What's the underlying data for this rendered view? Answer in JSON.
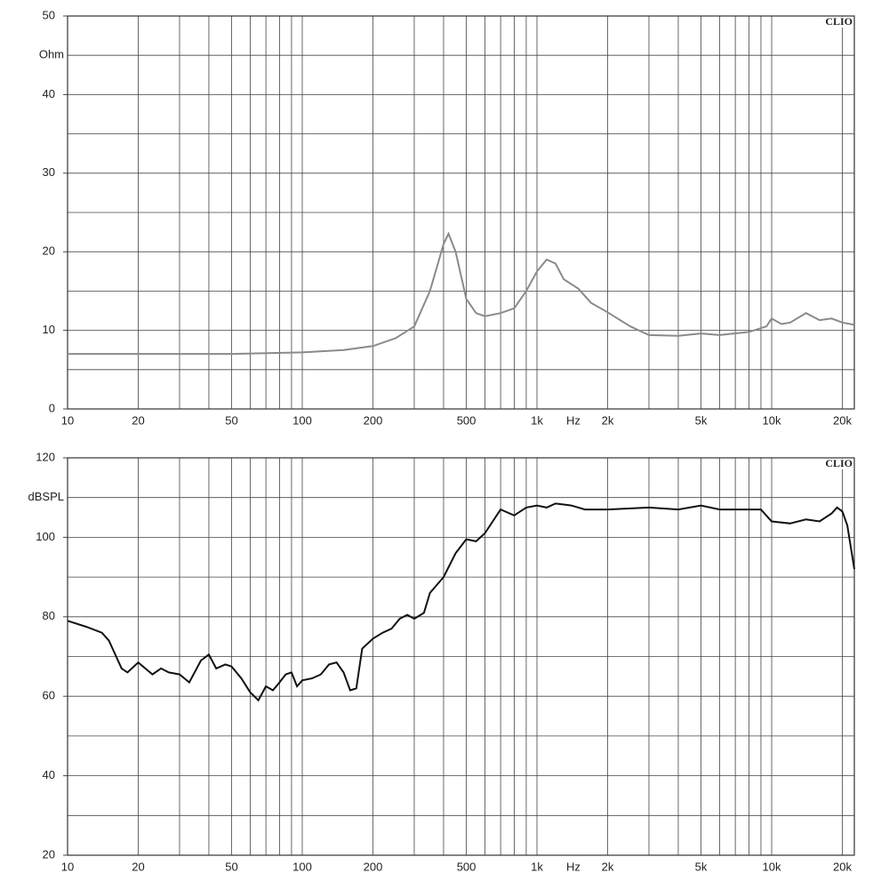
{
  "chart_data": [
    {
      "type": "line",
      "log_x": true,
      "grid": true,
      "x_label": "Hz",
      "y_label": "Ohm",
      "brand": "CLIO",
      "xlim": [
        10,
        22500
      ],
      "ylim": [
        0,
        50
      ],
      "xticks": [
        10,
        20,
        50,
        100,
        200,
        500,
        {
          "value": 1000,
          "label": "1k"
        },
        {
          "value": 2000,
          "label": "2k"
        },
        {
          "value": 5000,
          "label": "5k"
        },
        {
          "value": 10000,
          "label": "10k"
        },
        {
          "value": 20000,
          "label": "20k"
        }
      ],
      "xminor": [
        30,
        40,
        60,
        70,
        80,
        90,
        300,
        400,
        600,
        700,
        800,
        900,
        3000,
        4000,
        6000,
        7000,
        8000,
        9000
      ],
      "yticks": [
        0,
        10,
        20,
        30,
        40,
        50
      ],
      "yminor": [
        5,
        15,
        25,
        35,
        45
      ],
      "color": "#8a8a8a",
      "x": [
        10,
        50,
        100,
        150,
        200,
        250,
        300,
        350,
        400,
        420,
        450,
        500,
        550,
        600,
        700,
        800,
        900,
        1000,
        1100,
        1200,
        1300,
        1500,
        1700,
        2000,
        2500,
        3000,
        4000,
        5000,
        6000,
        8000,
        9500,
        10000,
        11000,
        12000,
        14000,
        16000,
        18000,
        20000,
        22500
      ],
      "values": [
        7,
        7,
        7.2,
        7.5,
        8,
        9,
        10.5,
        15,
        21,
        22.3,
        20,
        14,
        12.2,
        11.8,
        12.2,
        12.8,
        15,
        17.5,
        19,
        18.5,
        16.5,
        15.3,
        13.5,
        12.3,
        10.5,
        9.4,
        9.3,
        9.6,
        9.4,
        9.8,
        10.5,
        11.5,
        10.8,
        11,
        12.2,
        11.3,
        11.5,
        11,
        10.7
      ]
    },
    {
      "type": "line",
      "log_x": true,
      "grid": true,
      "x_label": "Hz",
      "y_label": "dBSPL",
      "brand": "CLIO",
      "xlim": [
        10,
        22500
      ],
      "ylim": [
        20,
        120
      ],
      "xticks": [
        10,
        20,
        50,
        100,
        200,
        500,
        {
          "value": 1000,
          "label": "1k"
        },
        {
          "value": 2000,
          "label": "2k"
        },
        {
          "value": 5000,
          "label": "5k"
        },
        {
          "value": 10000,
          "label": "10k"
        },
        {
          "value": 20000,
          "label": "20k"
        }
      ],
      "xminor": [
        30,
        40,
        60,
        70,
        80,
        90,
        300,
        400,
        600,
        700,
        800,
        900,
        3000,
        4000,
        6000,
        7000,
        8000,
        9000
      ],
      "yticks": [
        20,
        40,
        60,
        80,
        100,
        120
      ],
      "yminor": [
        30,
        50,
        70,
        90,
        110
      ],
      "color": "#111111",
      "x": [
        10,
        12,
        14,
        15,
        17,
        18,
        20,
        23,
        25,
        27,
        30,
        33,
        37,
        40,
        43,
        47,
        50,
        55,
        60,
        65,
        70,
        75,
        80,
        85,
        90,
        95,
        100,
        110,
        120,
        130,
        140,
        150,
        160,
        170,
        180,
        200,
        220,
        240,
        260,
        280,
        300,
        330,
        350,
        400,
        450,
        500,
        550,
        600,
        700,
        800,
        900,
        1000,
        1100,
        1200,
        1400,
        1600,
        2000,
        3000,
        4000,
        5000,
        6000,
        8000,
        9000,
        10000,
        12000,
        14000,
        16000,
        18000,
        19000,
        20000,
        21000,
        22500
      ],
      "values": [
        79,
        77.5,
        76,
        74,
        67,
        66,
        68.5,
        65.5,
        67,
        66,
        65.5,
        63.5,
        69,
        70.5,
        67,
        68,
        67.5,
        64.5,
        61,
        59,
        62.5,
        61.5,
        63.5,
        65.5,
        66,
        62.5,
        64,
        64.5,
        65.5,
        68,
        68.5,
        66,
        61.5,
        62,
        72,
        74.5,
        76,
        77,
        79.5,
        80.5,
        79.5,
        81,
        86,
        90,
        96,
        99.5,
        99,
        101,
        107,
        105.5,
        107.5,
        108,
        107.5,
        108.5,
        108,
        107,
        107,
        107.5,
        107,
        108,
        107,
        107,
        107,
        104,
        103.5,
        104.5,
        104,
        106,
        107.5,
        106.5,
        103,
        92
      ]
    }
  ]
}
